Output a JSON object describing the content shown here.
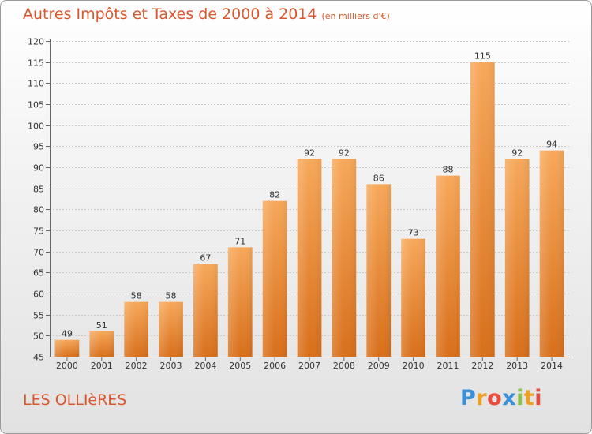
{
  "title": {
    "main": "Autres Impôts et Taxes de 2000 à 2014",
    "unit": "(en milliers d'€)"
  },
  "commune": "LES OLLIèRES",
  "logo": {
    "letters": [
      {
        "ch": "P",
        "color": "#3a8fd8"
      },
      {
        "ch": "r",
        "color": "#f0a020"
      },
      {
        "ch": "o",
        "color": "#e94b3c"
      },
      {
        "ch": "x",
        "color": "#3a8fd8"
      },
      {
        "ch": "i",
        "color": "#8bc34a"
      },
      {
        "ch": "t",
        "color": "#f0a020"
      },
      {
        "ch": "i",
        "color": "#e94b3c"
      }
    ]
  },
  "chart_data": {
    "type": "bar",
    "categories": [
      "2000",
      "2001",
      "2002",
      "2003",
      "2004",
      "2005",
      "2006",
      "2007",
      "2008",
      "2009",
      "2010",
      "2011",
      "2012",
      "2013",
      "2014"
    ],
    "values": [
      49,
      51,
      58,
      58,
      67,
      71,
      82,
      92,
      92,
      86,
      73,
      88,
      115,
      92,
      94
    ],
    "ylim": [
      45,
      120
    ],
    "yticks": [
      45,
      50,
      55,
      60,
      65,
      70,
      75,
      80,
      85,
      90,
      95,
      100,
      105,
      110,
      115,
      120
    ],
    "grid": true,
    "bar_color_top": "#f7a85a",
    "bar_color_bottom": "#d86f1a"
  }
}
